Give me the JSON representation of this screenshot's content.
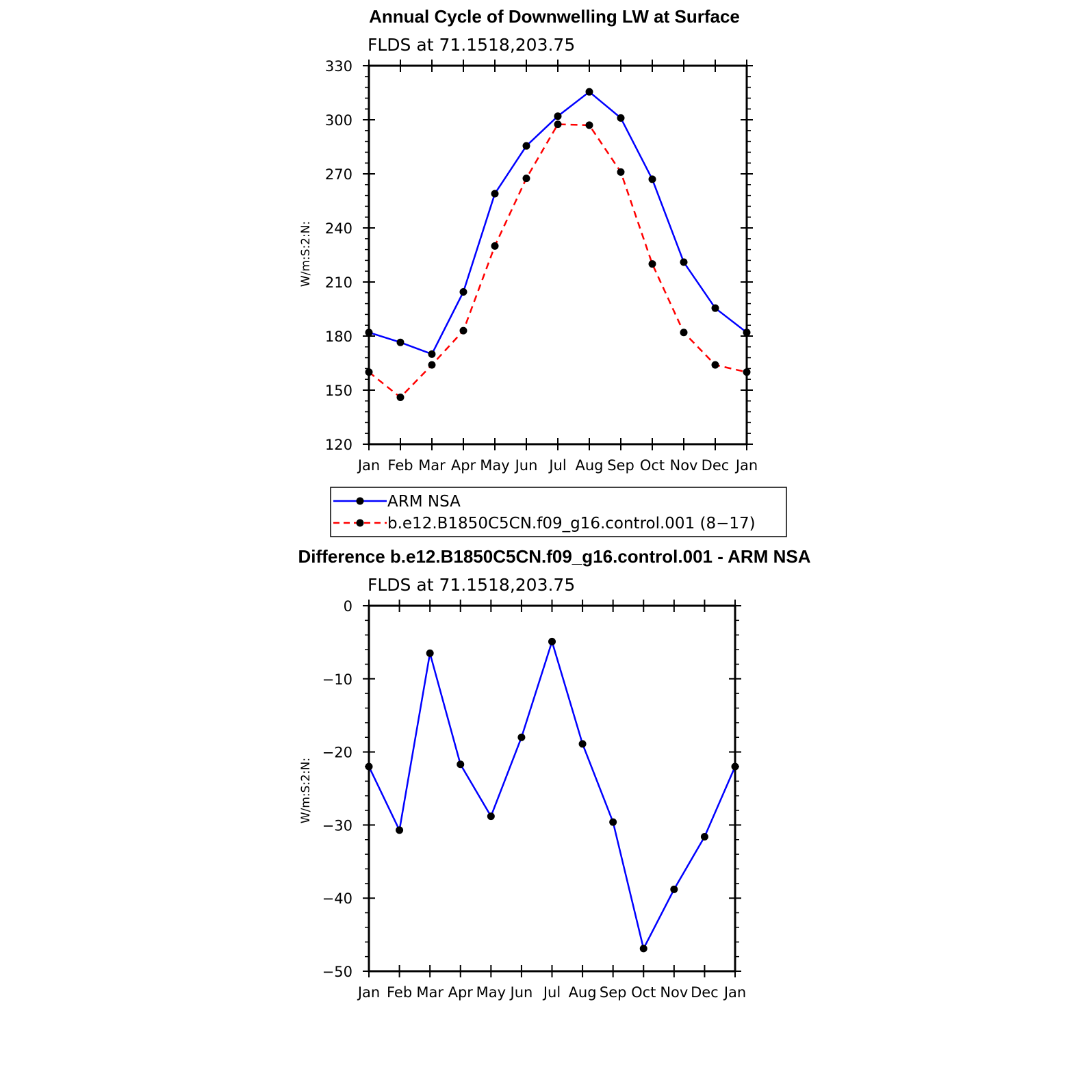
{
  "colors": {
    "obs": "#0000ff",
    "model": "#ff0000",
    "marker": "#000000"
  },
  "chart_data": [
    {
      "type": "line",
      "title": "Annual Cycle of Downwelling LW at Surface",
      "subtitle": "FLDS at 71.1518,203.75",
      "xlabel": "",
      "ylabel": "W/m:S:2:N:",
      "categories": [
        "Jan",
        "Feb",
        "Mar",
        "Apr",
        "May",
        "Jun",
        "Jul",
        "Aug",
        "Sep",
        "Oct",
        "Nov",
        "Dec",
        "Jan"
      ],
      "ylim": [
        120,
        330
      ],
      "yticks": [
        120,
        150,
        180,
        210,
        240,
        270,
        300,
        330
      ],
      "ytick_labels": [
        "120",
        "150",
        "180",
        "210",
        "240",
        "270",
        "300",
        "330"
      ],
      "legend": "below",
      "series": [
        {
          "name": "ARM NSA",
          "style": "solid",
          "color": "#0000ff",
          "values": [
            182,
            176.5,
            170,
            204.5,
            259,
            285.5,
            302,
            315.5,
            301,
            267,
            221,
            195.5,
            182
          ]
        },
        {
          "name": "b.e12.B1850C5CN.f09_g16.control.001 (8−17)",
          "style": "dashed",
          "color": "#ff0000",
          "values": [
            160,
            146,
            164,
            183,
            230,
            267.5,
            297.5,
            297,
            271,
            220,
            182,
            164,
            160
          ]
        }
      ]
    },
    {
      "type": "line",
      "title": "Difference b.e12.B1850C5CN.f09_g16.control.001 - ARM NSA",
      "subtitle": "FLDS at 71.1518,203.75",
      "xlabel": "",
      "ylabel": "W/m:S:2:N:",
      "categories": [
        "Jan",
        "Feb",
        "Mar",
        "Apr",
        "May",
        "Jun",
        "Jul",
        "Aug",
        "Sep",
        "Oct",
        "Nov",
        "Dec",
        "Jan"
      ],
      "ylim": [
        -50,
        0
      ],
      "yticks": [
        -50,
        -40,
        -30,
        -20,
        -10,
        0
      ],
      "ytick_labels": [
        "−50",
        "−40",
        "−30",
        "−20",
        "−10",
        "0"
      ],
      "series": [
        {
          "style": "solid",
          "color": "#0000ff",
          "values": [
            -22,
            -30.7,
            -6.5,
            -21.7,
            -28.8,
            -18,
            -4.9,
            -18.9,
            -29.6,
            -46.9,
            -38.8,
            -31.6,
            -22
          ]
        }
      ]
    }
  ]
}
